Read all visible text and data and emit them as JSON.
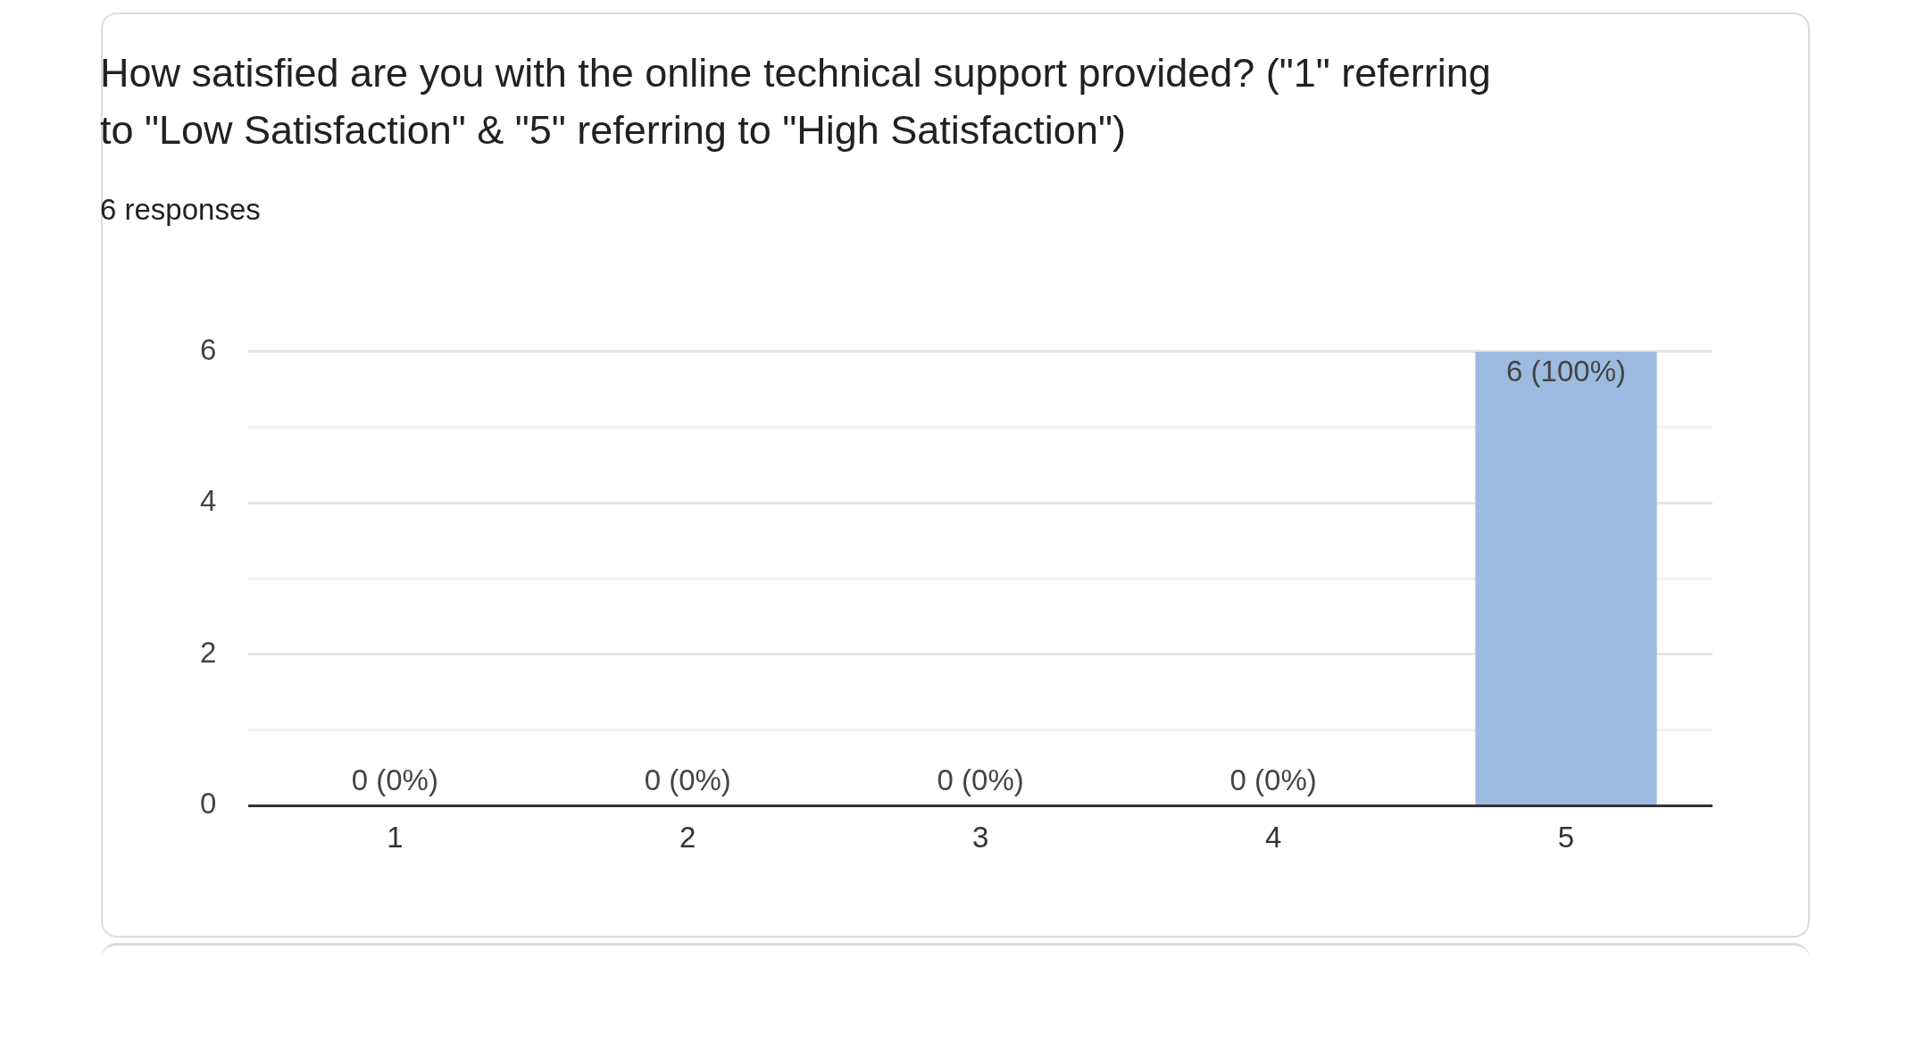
{
  "chart_data": {
    "type": "bar",
    "title": "How satisfied are you with the online technical support provided? (\"1\" referring to \"Low Satisfaction\" & \"5\" referring to \"High Satisfaction\")",
    "subtitle": "6 responses",
    "categories": [
      "1",
      "2",
      "3",
      "4",
      "5"
    ],
    "values": [
      0,
      0,
      0,
      0,
      6
    ],
    "value_labels": [
      "0 (0%)",
      "0 (0%)",
      "0 (0%)",
      "0 (0%)",
      "6 (100%)"
    ],
    "color": "#9dbbe1",
    "ylim": [
      0,
      6
    ],
    "yticks": [
      0,
      {
        "value": 1,
        "label": null
      },
      2,
      {
        "value": 3,
        "label": null
      },
      4,
      {
        "value": 5,
        "label": null
      },
      6
    ],
    "grid": "y",
    "legend": false
  }
}
